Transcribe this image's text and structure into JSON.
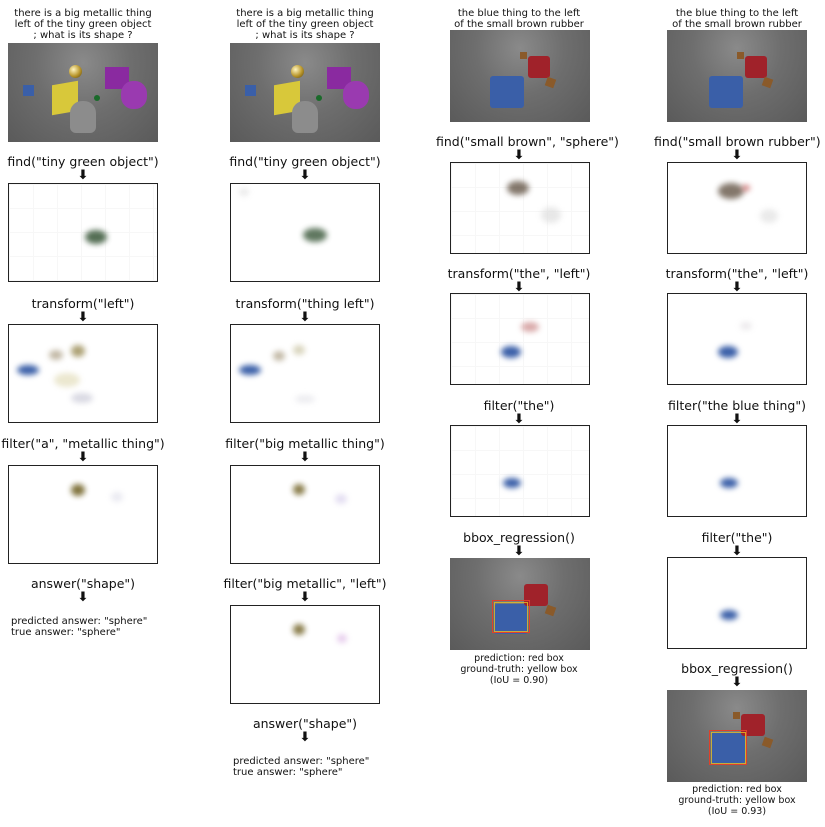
{
  "columns": [
    {
      "caption": "there is a big metallic thing\nleft of the tiny green object\n; what is its shape ?",
      "ops": [
        "find(\"tiny green object\")",
        "transform(\"left\")",
        "filter(\"a\", \"metallic thing\")",
        "answer(\"shape\")"
      ],
      "predicted": "predicted answer: \"sphere\"",
      "truth": "true answer: \"sphere\""
    },
    {
      "caption": "there is a big metallic thing\nleft of the tiny green object\n; what is its shape ?",
      "ops": [
        "find(\"tiny green object\")",
        "transform(\"thing left\")",
        "filter(\"big metallic thing\")",
        "filter(\"big metallic\", \"left\")",
        "answer(\"shape\")"
      ],
      "predicted": "predicted answer: \"sphere\"",
      "truth": "true answer: \"sphere\""
    },
    {
      "caption": "the blue thing to the left\nof the small brown rubber sphere",
      "ops": [
        "find(\"small brown\", \"sphere\")",
        "transform(\"the\", \"left\")",
        "filter(\"the\")",
        "bbox_regression()"
      ],
      "note": "prediction: red box\nground-truth: yellow box\n(IoU = 0.90)"
    },
    {
      "caption": "the blue thing to the left\nof the small brown rubber sphere",
      "ops": [
        "find(\"small brown rubber\")",
        "transform(\"the\", \"left\")",
        "filter(\"the blue thing\")",
        "filter(\"the\")",
        "bbox_regression()"
      ],
      "note": "prediction: red box\nground-truth: yellow box\n(IoU = 0.93)"
    }
  ],
  "arrow_glyph": "⬇",
  "colors": {
    "blue_cube": "#3a5fa8",
    "red_cube": "#a0222a",
    "brown_sphere": "#8a5a2a",
    "purple": "#8a2aa0",
    "yellow_cube": "#d8c83a",
    "gray_cylinder": "#8a8a8a",
    "gold_sphere": "#b8952a",
    "green_object": "#1a6a2a",
    "pred_box": "#e0402a",
    "gt_box": "#e8c020"
  }
}
